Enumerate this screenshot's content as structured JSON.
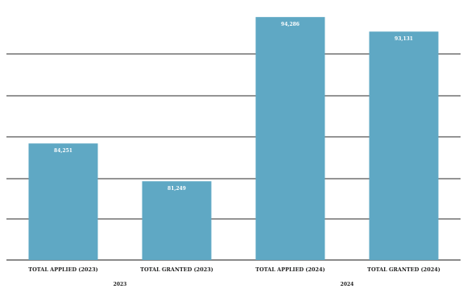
{
  "chart_data": {
    "type": "bar",
    "categories": [
      "TOTAL APPLIED (2023)",
      "TOTAL GRANTED (2023)",
      "TOTAL APPLIED (2024)",
      "TOTAL GRANTED (2024)"
    ],
    "groups": [
      "2023",
      "2024"
    ],
    "values": [
      84251,
      81249,
      94286,
      93131
    ],
    "data_labels": [
      "84,251",
      "81,249",
      "94,286",
      "93,131"
    ],
    "bar_color": "#5fa8c4",
    "grid": true,
    "ylim": [
      75000,
      95000
    ]
  }
}
